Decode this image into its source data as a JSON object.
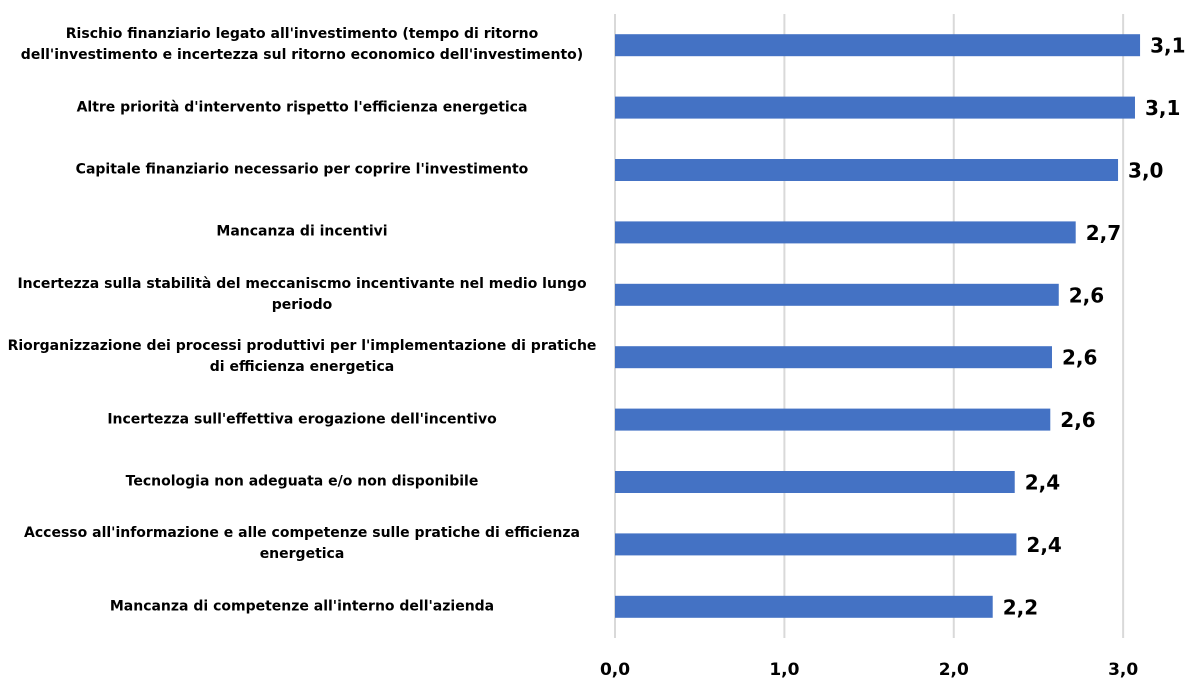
{
  "chart_data": {
    "type": "bar",
    "orientation": "horizontal",
    "categories": [
      "Rischio finanziario legato all'investimento (tempo di ritorno dell'investimento e incertezza sul ritorno economico dell'investimento)",
      "Altre priorità d'intervento rispetto l'efficienza energetica",
      "Capitale finanziario necessario per coprire l'investimento",
      "Mancanza di incentivi",
      "Incertezza sulla stabilità del meccaniscmo incentivante nel medio lungo periodo",
      "Riorganizzazione dei processi produttivi per l'implementazione di pratiche di efficienza energetica",
      "Incertezza sull'effettiva erogazione dell'incentivo",
      "Tecnologia non adeguata e/o non disponibile",
      "Accesso all'informazione e alle competenze sulle pratiche di efficienza energetica",
      "Mancanza di competenze all'interno dell'azienda"
    ],
    "values": [
      3.1,
      3.07,
      2.97,
      2.72,
      2.62,
      2.58,
      2.57,
      2.36,
      2.37,
      2.23
    ],
    "value_labels": [
      "3,1",
      "3,1",
      "3,0",
      "2,7",
      "2,6",
      "2,6",
      "2,6",
      "2,4",
      "2,4",
      "2,2"
    ],
    "color": "#4472c4",
    "xlim": [
      0,
      3.2
    ],
    "xticks": [
      {
        "value": 0,
        "label": "0,0"
      },
      {
        "value": 1,
        "label": "1,0"
      },
      {
        "value": 2,
        "label": "2,0"
      },
      {
        "value": 3,
        "label": "3,0"
      }
    ],
    "grid": true
  }
}
